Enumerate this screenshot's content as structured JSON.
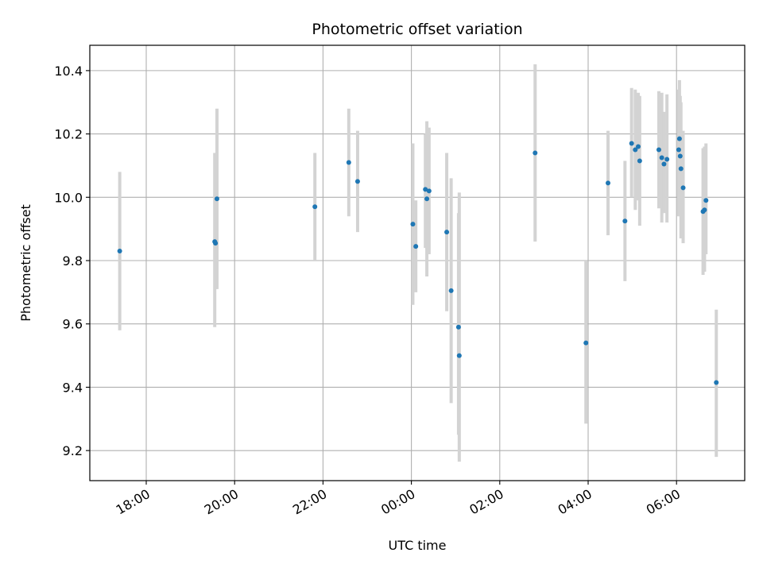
{
  "chart_data": {
    "type": "scatter",
    "title": "Photometric offset variation",
    "xlabel": "UTC time",
    "ylabel": "Photometric offset",
    "x_tick_labels": [
      "18:00",
      "20:00",
      "22:00",
      "00:00",
      "02:00",
      "04:00",
      "06:00"
    ],
    "y_tick_labels": [
      "9.2",
      "9.4",
      "9.6",
      "9.8",
      "10.0",
      "10.2",
      "10.4"
    ],
    "y_ticks": [
      9.2,
      9.4,
      9.6,
      9.8,
      10.0,
      10.2,
      10.4
    ],
    "ylim": [
      9.105,
      10.48
    ],
    "grid": true,
    "colors": {
      "point": "#1f77b4",
      "errorbar": "#d3d3d3",
      "grid": "#b0b0b0"
    },
    "points": [
      {
        "x": "17:24",
        "y": 9.83,
        "yerr_low": 9.58,
        "yerr_high": 10.08
      },
      {
        "x": "19:33",
        "y": 9.86,
        "yerr_low": 9.59,
        "yerr_high": 10.14
      },
      {
        "x": "19:34",
        "y": 9.855,
        "yerr_low": 9.71,
        "yerr_high": 10.0
      },
      {
        "x": "19:36",
        "y": 9.995,
        "yerr_low": 9.71,
        "yerr_high": 10.28
      },
      {
        "x": "21:49",
        "y": 9.97,
        "yerr_low": 9.8,
        "yerr_high": 10.14
      },
      {
        "x": "22:35",
        "y": 10.11,
        "yerr_low": 9.94,
        "yerr_high": 10.28
      },
      {
        "x": "22:47",
        "y": 10.05,
        "yerr_low": 9.89,
        "yerr_high": 10.21
      },
      {
        "x": "00:02",
        "y": 9.915,
        "yerr_low": 9.66,
        "yerr_high": 10.17
      },
      {
        "x": "00:06",
        "y": 9.845,
        "yerr_low": 9.7,
        "yerr_high": 9.99
      },
      {
        "x": "00:19",
        "y": 10.025,
        "yerr_low": 9.84,
        "yerr_high": 10.2
      },
      {
        "x": "00:21",
        "y": 9.995,
        "yerr_low": 9.75,
        "yerr_high": 10.24
      },
      {
        "x": "00:24",
        "y": 10.02,
        "yerr_low": 9.82,
        "yerr_high": 10.22
      },
      {
        "x": "00:48",
        "y": 9.89,
        "yerr_low": 9.64,
        "yerr_high": 10.14
      },
      {
        "x": "00:54",
        "y": 9.705,
        "yerr_low": 9.35,
        "yerr_high": 10.06
      },
      {
        "x": "01:04",
        "y": 9.59,
        "yerr_low": 9.25,
        "yerr_high": 9.95
      },
      {
        "x": "01:05",
        "y": 9.5,
        "yerr_low": 9.165,
        "yerr_high": 10.015
      },
      {
        "x": "02:48",
        "y": 10.14,
        "yerr_low": 9.86,
        "yerr_high": 10.42
      },
      {
        "x": "03:57",
        "y": 9.54,
        "yerr_low": 9.285,
        "yerr_high": 9.8
      },
      {
        "x": "04:27",
        "y": 10.045,
        "yerr_low": 9.88,
        "yerr_high": 10.21
      },
      {
        "x": "04:50",
        "y": 9.925,
        "yerr_low": 9.735,
        "yerr_high": 10.115
      },
      {
        "x": "04:59",
        "y": 10.17,
        "yerr_low": 10.0,
        "yerr_high": 10.345
      },
      {
        "x": "05:04",
        "y": 10.15,
        "yerr_low": 9.96,
        "yerr_high": 10.34
      },
      {
        "x": "05:08",
        "y": 10.16,
        "yerr_low": 9.99,
        "yerr_high": 10.33
      },
      {
        "x": "05:10",
        "y": 10.115,
        "yerr_low": 9.91,
        "yerr_high": 10.32
      },
      {
        "x": "05:36",
        "y": 10.15,
        "yerr_low": 9.965,
        "yerr_high": 10.335
      },
      {
        "x": "05:40",
        "y": 10.125,
        "yerr_low": 9.92,
        "yerr_high": 10.33
      },
      {
        "x": "05:43",
        "y": 10.105,
        "yerr_low": 9.95,
        "yerr_high": 10.27
      },
      {
        "x": "05:47",
        "y": 10.12,
        "yerr_low": 9.92,
        "yerr_high": 10.325
      },
      {
        "x": "06:03",
        "y": 10.15,
        "yerr_low": 9.94,
        "yerr_high": 10.34
      },
      {
        "x": "06:04",
        "y": 10.185,
        "yerr_low": 10.0,
        "yerr_high": 10.37
      },
      {
        "x": "06:05",
        "y": 10.13,
        "yerr_low": 9.94,
        "yerr_high": 10.32
      },
      {
        "x": "06:06",
        "y": 10.09,
        "yerr_low": 9.87,
        "yerr_high": 10.3
      },
      {
        "x": "06:09",
        "y": 10.03,
        "yerr_low": 9.855,
        "yerr_high": 10.21
      },
      {
        "x": "06:36",
        "y": 9.955,
        "yerr_low": 9.755,
        "yerr_high": 10.155
      },
      {
        "x": "06:38",
        "y": 9.96,
        "yerr_low": 9.765,
        "yerr_high": 10.16
      },
      {
        "x": "06:40",
        "y": 9.99,
        "yerr_low": 9.82,
        "yerr_high": 10.17
      },
      {
        "x": "06:54",
        "y": 9.415,
        "yerr_low": 9.18,
        "yerr_high": 9.645
      }
    ]
  }
}
